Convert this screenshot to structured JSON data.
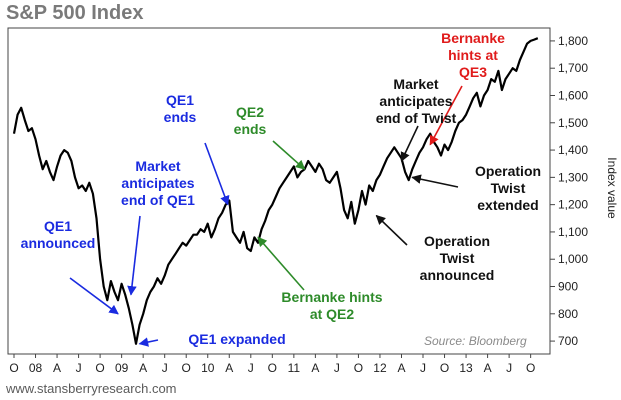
{
  "title": "S&P 500 Index",
  "footer": "www.stansberryresearch.com",
  "source": "Source: Bloomberg",
  "colors": {
    "blue": "#1a2be0",
    "green": "#2e8b2a",
    "black": "#111111",
    "red": "#e01b1b",
    "line": "#000000"
  },
  "chart_data": {
    "type": "line",
    "ylabel": "Index value",
    "ylim": [
      660,
      1840
    ],
    "y_ticks": [
      "700",
      "800",
      "900",
      "1,000",
      "1,100",
      "1,200",
      "1,300",
      "1,400",
      "1,500",
      "1,600",
      "1,700",
      "1,800"
    ],
    "y_tick_values": [
      700,
      800,
      900,
      1000,
      1100,
      1200,
      1300,
      1400,
      1500,
      1600,
      1700,
      1800
    ],
    "x_tick_labels": [
      "O",
      "08",
      "A",
      "J",
      "O",
      "09",
      "A",
      "J",
      "O",
      "10",
      "A",
      "J",
      "O",
      "11",
      "A",
      "J",
      "O",
      "12",
      "A",
      "J",
      "O",
      "13",
      "A",
      "J",
      "O"
    ],
    "x_tick_months": [
      0,
      3,
      6,
      9,
      12,
      15,
      18,
      21,
      24,
      27,
      30,
      33,
      36,
      39,
      42,
      45,
      48,
      51,
      54,
      57,
      60,
      63,
      66,
      69,
      72
    ],
    "x_unit": "months from Oct 2007",
    "xlim": [
      0,
      74
    ],
    "grid": false,
    "series": [
      {
        "values": [
          [
            0,
            1460
          ],
          [
            0.5,
            1530
          ],
          [
            1,
            1555
          ],
          [
            1.5,
            1510
          ],
          [
            2,
            1470
          ],
          [
            2.5,
            1480
          ],
          [
            3,
            1440
          ],
          [
            3.5,
            1380
          ],
          [
            4,
            1330
          ],
          [
            4.5,
            1360
          ],
          [
            5,
            1320
          ],
          [
            5.5,
            1290
          ],
          [
            6,
            1340
          ],
          [
            6.5,
            1380
          ],
          [
            7,
            1400
          ],
          [
            7.5,
            1390
          ],
          [
            8,
            1360
          ],
          [
            8.5,
            1300
          ],
          [
            9,
            1260
          ],
          [
            9.5,
            1270
          ],
          [
            10,
            1250
          ],
          [
            10.5,
            1280
          ],
          [
            11,
            1240
          ],
          [
            11.5,
            1150
          ],
          [
            12,
            1000
          ],
          [
            12.5,
            900
          ],
          [
            13,
            850
          ],
          [
            13.5,
            920
          ],
          [
            14,
            880
          ],
          [
            14.5,
            850
          ],
          [
            15,
            910
          ],
          [
            15.5,
            870
          ],
          [
            16,
            820
          ],
          [
            16.5,
            760
          ],
          [
            17,
            690
          ],
          [
            17.5,
            760
          ],
          [
            18,
            800
          ],
          [
            18.5,
            850
          ],
          [
            19,
            880
          ],
          [
            19.5,
            900
          ],
          [
            20,
            930
          ],
          [
            20.5,
            910
          ],
          [
            21,
            940
          ],
          [
            21.5,
            980
          ],
          [
            22,
            1000
          ],
          [
            22.5,
            1020
          ],
          [
            23,
            1040
          ],
          [
            23.5,
            1060
          ],
          [
            24,
            1050
          ],
          [
            24.5,
            1070
          ],
          [
            25,
            1090
          ],
          [
            25.5,
            1090
          ],
          [
            26,
            1110
          ],
          [
            26.5,
            1100
          ],
          [
            27,
            1130
          ],
          [
            27.5,
            1080
          ],
          [
            28,
            1110
          ],
          [
            28.5,
            1150
          ],
          [
            29,
            1170
          ],
          [
            29.5,
            1200
          ],
          [
            30,
            1215
          ],
          [
            30.5,
            1100
          ],
          [
            31,
            1080
          ],
          [
            31.5,
            1060
          ],
          [
            32,
            1100
          ],
          [
            32.5,
            1040
          ],
          [
            33,
            1030
          ],
          [
            33.5,
            1080
          ],
          [
            34,
            1060
          ],
          [
            34.5,
            1110
          ],
          [
            35,
            1140
          ],
          [
            35.5,
            1180
          ],
          [
            36,
            1200
          ],
          [
            36.5,
            1230
          ],
          [
            37,
            1260
          ],
          [
            37.5,
            1280
          ],
          [
            38,
            1300
          ],
          [
            38.5,
            1320
          ],
          [
            39,
            1340
          ],
          [
            39.5,
            1300
          ],
          [
            40,
            1320
          ],
          [
            40.5,
            1330
          ],
          [
            41,
            1360
          ],
          [
            41.5,
            1340
          ],
          [
            42,
            1320
          ],
          [
            42.5,
            1350
          ],
          [
            43,
            1330
          ],
          [
            43.5,
            1290
          ],
          [
            44,
            1280
          ],
          [
            44.5,
            1300
          ],
          [
            45,
            1320
          ],
          [
            45.5,
            1260
          ],
          [
            46,
            1180
          ],
          [
            46.5,
            1150
          ],
          [
            47,
            1210
          ],
          [
            47.5,
            1130
          ],
          [
            48,
            1180
          ],
          [
            48.5,
            1250
          ],
          [
            49,
            1200
          ],
          [
            49.5,
            1270
          ],
          [
            50,
            1250
          ],
          [
            50.5,
            1290
          ],
          [
            51,
            1310
          ],
          [
            51.5,
            1340
          ],
          [
            52,
            1370
          ],
          [
            52.5,
            1390
          ],
          [
            53,
            1410
          ],
          [
            53.5,
            1390
          ],
          [
            54,
            1370
          ],
          [
            54.5,
            1320
          ],
          [
            55,
            1290
          ],
          [
            55.5,
            1330
          ],
          [
            56,
            1360
          ],
          [
            56.5,
            1390
          ],
          [
            57,
            1410
          ],
          [
            57.5,
            1440
          ],
          [
            58,
            1460
          ],
          [
            58.5,
            1430
          ],
          [
            59,
            1410
          ],
          [
            59.5,
            1380
          ],
          [
            60,
            1420
          ],
          [
            60.5,
            1400
          ],
          [
            61,
            1430
          ],
          [
            61.5,
            1470
          ],
          [
            62,
            1500
          ],
          [
            62.5,
            1510
          ],
          [
            63,
            1530
          ],
          [
            63.5,
            1560
          ],
          [
            64,
            1590
          ],
          [
            64.5,
            1610
          ],
          [
            65,
            1560
          ],
          [
            65.5,
            1600
          ],
          [
            66,
            1620
          ],
          [
            66.5,
            1660
          ],
          [
            67,
            1650
          ],
          [
            67.5,
            1690
          ],
          [
            68,
            1620
          ],
          [
            68.5,
            1660
          ],
          [
            69,
            1680
          ],
          [
            69.5,
            1700
          ],
          [
            70,
            1690
          ],
          [
            70.5,
            1730
          ],
          [
            71,
            1760
          ],
          [
            71.5,
            1790
          ],
          [
            72,
            1800
          ],
          [
            72.5,
            1805
          ],
          [
            73,
            1810
          ]
        ]
      }
    ],
    "annotations": [
      {
        "text": [
          "QE1",
          "announced"
        ],
        "color": "blue",
        "arrow_to": [
          14.5,
          800
        ]
      },
      {
        "text": [
          "Market",
          "anticipates",
          "end of QE1"
        ],
        "color": "blue",
        "arrow_to": [
          16.3,
          870
        ]
      },
      {
        "text": [
          "QE1 expanded"
        ],
        "color": "blue",
        "arrow_to": [
          17.5,
          690
        ]
      },
      {
        "text": [
          "QE1",
          "ends"
        ],
        "color": "blue",
        "arrow_to": [
          29.8,
          1200
        ]
      },
      {
        "text": [
          "QE2",
          "ends"
        ],
        "color": "green",
        "arrow_to": [
          40.5,
          1330
        ]
      },
      {
        "text": [
          "Bernanke hints",
          "at QE2"
        ],
        "color": "green",
        "arrow_to": [
          34,
          1080
        ]
      },
      {
        "text": [
          "Market",
          "anticipates",
          "end of Twist"
        ],
        "color": "black",
        "arrow_to": [
          54,
          1360
        ]
      },
      {
        "text": [
          "Operation",
          "Twist",
          "extended"
        ],
        "color": "black",
        "arrow_to": [
          55.5,
          1300
        ]
      },
      {
        "text": [
          "Operation",
          "Twist",
          "announced"
        ],
        "color": "black",
        "arrow_to": [
          50.5,
          1160
        ]
      },
      {
        "text": [
          "Bernanke",
          "hints at",
          "QE3"
        ],
        "color": "red",
        "arrow_to": [
          58,
          1420
        ]
      }
    ]
  }
}
